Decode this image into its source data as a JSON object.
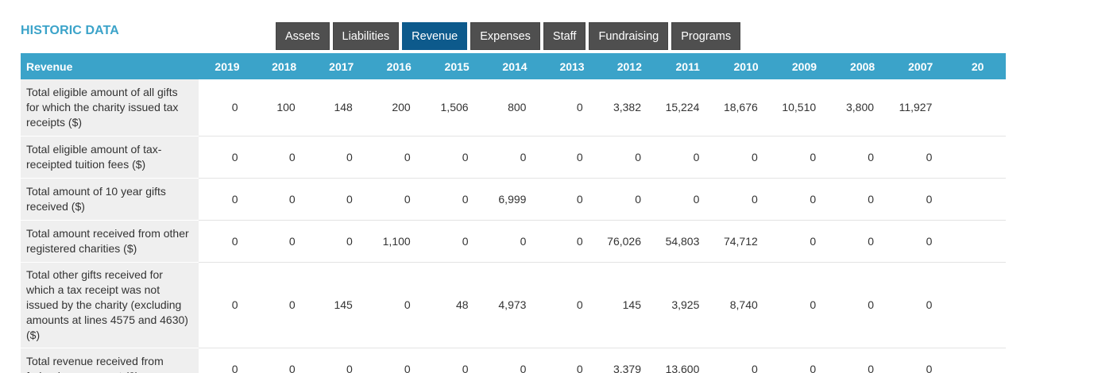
{
  "title": "HISTORIC DATA",
  "tabs": [
    "Assets",
    "Liabilities",
    "Revenue",
    "Expenses",
    "Staff",
    "Fundraising",
    "Programs"
  ],
  "active_tab": "Revenue",
  "table": {
    "header_label": "Revenue",
    "years": [
      "2019",
      "2018",
      "2017",
      "2016",
      "2015",
      "2014",
      "2013",
      "2012",
      "2011",
      "2010",
      "2009",
      "2008",
      "2007",
      "20"
    ],
    "rows": [
      {
        "label": "Total eligible amount of all gifts for which the charity issued tax receipts ($)",
        "values": [
          "0",
          "100",
          "148",
          "200",
          "1,506",
          "800",
          "0",
          "3,382",
          "15,224",
          "18,676",
          "10,510",
          "3,800",
          "11,927",
          ""
        ]
      },
      {
        "label": "Total eligible amount of tax-receipted tuition fees ($)",
        "values": [
          "0",
          "0",
          "0",
          "0",
          "0",
          "0",
          "0",
          "0",
          "0",
          "0",
          "0",
          "0",
          "0",
          ""
        ]
      },
      {
        "label": "Total amount of 10 year gifts received ($)",
        "values": [
          "0",
          "0",
          "0",
          "0",
          "0",
          "6,999",
          "0",
          "0",
          "0",
          "0",
          "0",
          "0",
          "0",
          ""
        ]
      },
      {
        "label": "Total amount received from other registered charities ($)",
        "values": [
          "0",
          "0",
          "0",
          "1,100",
          "0",
          "0",
          "0",
          "76,026",
          "54,803",
          "74,712",
          "0",
          "0",
          "0",
          ""
        ]
      },
      {
        "label": "Total other gifts received for which a tax receipt was not issued by the charity (excluding amounts at lines 4575 and 4630) ($)",
        "values": [
          "0",
          "0",
          "145",
          "0",
          "48",
          "4,973",
          "0",
          "145",
          "3,925",
          "8,740",
          "0",
          "0",
          "0",
          ""
        ]
      },
      {
        "label": "Total revenue received from federal government ($)",
        "values": [
          "0",
          "0",
          "0",
          "0",
          "0",
          "0",
          "0",
          "3,379",
          "13,600",
          "0",
          "0",
          "0",
          "0",
          ""
        ]
      }
    ]
  }
}
